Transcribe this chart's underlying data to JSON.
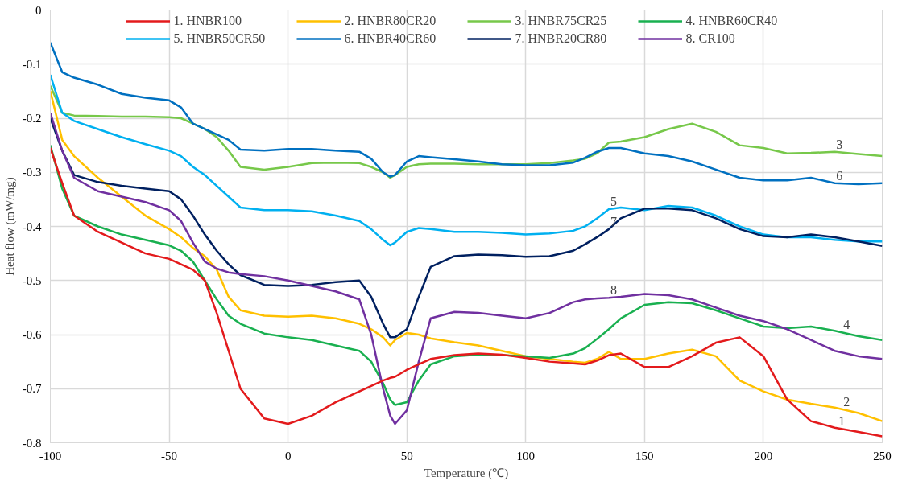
{
  "chart_data": {
    "type": "line",
    "xlabel": "Temperature (℃)",
    "ylabel": "Heat flow (mW/mg)",
    "x": [
      -100,
      -95,
      -90,
      -80,
      -70,
      -60,
      -50,
      -45,
      -40,
      -35,
      -30,
      -25,
      -20,
      -10,
      0,
      10,
      20,
      30,
      35,
      40,
      43,
      45,
      50,
      55,
      60,
      70,
      80,
      90,
      100,
      110,
      120,
      125,
      130,
      135,
      140,
      150,
      160,
      170,
      180,
      190,
      200,
      210,
      220,
      230,
      240,
      250
    ],
    "series": [
      {
        "name": "1. HNBR100",
        "color": "#e31a1c",
        "values": [
          -0.255,
          -0.32,
          -0.38,
          -0.41,
          -0.43,
          -0.45,
          -0.46,
          -0.47,
          -0.48,
          -0.5,
          -0.56,
          -0.63,
          -0.7,
          -0.755,
          -0.765,
          -0.75,
          -0.725,
          -0.705,
          -0.695,
          -0.685,
          -0.68,
          -0.678,
          -0.665,
          -0.655,
          -0.645,
          -0.638,
          -0.635,
          -0.637,
          -0.643,
          -0.65,
          -0.653,
          -0.655,
          -0.648,
          -0.638,
          -0.635,
          -0.66,
          -0.66,
          -0.64,
          -0.615,
          -0.605,
          -0.64,
          -0.72,
          -0.76,
          -0.772,
          -0.78,
          -0.788
        ]
      },
      {
        "name": "2. HNBR80CR20",
        "color": "#ffc000",
        "values": [
          -0.15,
          -0.24,
          -0.27,
          -0.31,
          -0.345,
          -0.38,
          -0.405,
          -0.42,
          -0.44,
          -0.455,
          -0.48,
          -0.53,
          -0.555,
          -0.565,
          -0.567,
          -0.565,
          -0.57,
          -0.58,
          -0.59,
          -0.605,
          -0.62,
          -0.61,
          -0.597,
          -0.6,
          -0.607,
          -0.614,
          -0.62,
          -0.63,
          -0.64,
          -0.645,
          -0.65,
          -0.652,
          -0.645,
          -0.632,
          -0.645,
          -0.645,
          -0.635,
          -0.628,
          -0.64,
          -0.685,
          -0.705,
          -0.72,
          -0.728,
          -0.735,
          -0.745,
          -0.76
        ]
      },
      {
        "name": "3. HNBR75CR25",
        "color": "#77c84a",
        "values": [
          -0.14,
          -0.19,
          -0.195,
          -0.196,
          -0.197,
          -0.197,
          -0.198,
          -0.2,
          -0.21,
          -0.22,
          -0.235,
          -0.26,
          -0.29,
          -0.295,
          -0.29,
          -0.283,
          -0.282,
          -0.283,
          -0.29,
          -0.3,
          -0.31,
          -0.305,
          -0.29,
          -0.285,
          -0.284,
          -0.284,
          -0.285,
          -0.285,
          -0.285,
          -0.283,
          -0.278,
          -0.275,
          -0.265,
          -0.245,
          -0.243,
          -0.235,
          -0.22,
          -0.21,
          -0.225,
          -0.25,
          -0.255,
          -0.265,
          -0.264,
          -0.262,
          -0.266,
          -0.27
        ]
      },
      {
        "name": "4. HNBR60CR40",
        "color": "#19b050",
        "values": [
          -0.25,
          -0.33,
          -0.38,
          -0.4,
          -0.415,
          -0.425,
          -0.435,
          -0.445,
          -0.465,
          -0.5,
          -0.535,
          -0.565,
          -0.58,
          -0.598,
          -0.605,
          -0.61,
          -0.62,
          -0.63,
          -0.65,
          -0.69,
          -0.72,
          -0.73,
          -0.725,
          -0.685,
          -0.655,
          -0.64,
          -0.637,
          -0.638,
          -0.64,
          -0.643,
          -0.635,
          -0.625,
          -0.608,
          -0.59,
          -0.57,
          -0.545,
          -0.54,
          -0.542,
          -0.555,
          -0.57,
          -0.585,
          -0.588,
          -0.585,
          -0.593,
          -0.603,
          -0.61
        ]
      },
      {
        "name": "5. HNBR50CR50",
        "color": "#00b0f0",
        "values": [
          -0.12,
          -0.19,
          -0.205,
          -0.22,
          -0.235,
          -0.248,
          -0.26,
          -0.27,
          -0.29,
          -0.305,
          -0.325,
          -0.345,
          -0.365,
          -0.37,
          -0.37,
          -0.372,
          -0.38,
          -0.39,
          -0.405,
          -0.425,
          -0.435,
          -0.43,
          -0.41,
          -0.403,
          -0.405,
          -0.41,
          -0.41,
          -0.412,
          -0.415,
          -0.413,
          -0.408,
          -0.4,
          -0.385,
          -0.368,
          -0.365,
          -0.37,
          -0.362,
          -0.365,
          -0.38,
          -0.4,
          -0.415,
          -0.42,
          -0.42,
          -0.425,
          -0.428,
          -0.428
        ]
      },
      {
        "name": "6. HNBR40CR60",
        "color": "#0070c0",
        "values": [
          -0.06,
          -0.115,
          -0.125,
          -0.138,
          -0.155,
          -0.162,
          -0.167,
          -0.18,
          -0.21,
          -0.22,
          -0.23,
          -0.24,
          -0.258,
          -0.26,
          -0.257,
          -0.257,
          -0.26,
          -0.262,
          -0.275,
          -0.3,
          -0.308,
          -0.305,
          -0.28,
          -0.27,
          -0.272,
          -0.276,
          -0.28,
          -0.285,
          -0.287,
          -0.287,
          -0.282,
          -0.273,
          -0.262,
          -0.255,
          -0.255,
          -0.265,
          -0.27,
          -0.28,
          -0.295,
          -0.31,
          -0.315,
          -0.315,
          -0.31,
          -0.32,
          -0.322,
          -0.32
        ]
      },
      {
        "name": "7. HNBR20CR80",
        "color": "#002060",
        "values": [
          -0.2,
          -0.26,
          -0.305,
          -0.318,
          -0.325,
          -0.33,
          -0.335,
          -0.35,
          -0.38,
          -0.415,
          -0.445,
          -0.47,
          -0.49,
          -0.508,
          -0.51,
          -0.508,
          -0.503,
          -0.5,
          -0.53,
          -0.58,
          -0.605,
          -0.605,
          -0.59,
          -0.53,
          -0.475,
          -0.455,
          -0.452,
          -0.453,
          -0.456,
          -0.455,
          -0.445,
          -0.433,
          -0.42,
          -0.405,
          -0.385,
          -0.367,
          -0.367,
          -0.37,
          -0.385,
          -0.405,
          -0.418,
          -0.42,
          -0.415,
          -0.42,
          -0.428,
          -0.436
        ]
      },
      {
        "name": "8. CR100",
        "color": "#7030a0",
        "values": [
          -0.19,
          -0.26,
          -0.31,
          -0.335,
          -0.345,
          -0.355,
          -0.37,
          -0.39,
          -0.43,
          -0.465,
          -0.478,
          -0.485,
          -0.488,
          -0.492,
          -0.5,
          -0.51,
          -0.52,
          -0.535,
          -0.6,
          -0.7,
          -0.75,
          -0.765,
          -0.74,
          -0.65,
          -0.57,
          -0.558,
          -0.56,
          -0.565,
          -0.57,
          -0.56,
          -0.54,
          -0.535,
          -0.533,
          -0.532,
          -0.53,
          -0.525,
          -0.527,
          -0.535,
          -0.55,
          -0.565,
          -0.575,
          -0.59,
          -0.61,
          -0.63,
          -0.64,
          -0.645
        ]
      }
    ],
    "annotations": [
      {
        "text": "3",
        "x": 232,
        "y": -0.262
      },
      {
        "text": "6",
        "x": 232,
        "y": -0.32
      },
      {
        "text": "5",
        "x": 137,
        "y": -0.368
      },
      {
        "text": "7",
        "x": 137,
        "y": -0.405
      },
      {
        "text": "8",
        "x": 137,
        "y": -0.532
      },
      {
        "text": "4",
        "x": 235,
        "y": -0.595
      },
      {
        "text": "2",
        "x": 235,
        "y": -0.738
      },
      {
        "text": "1",
        "x": 233,
        "y": -0.774
      }
    ],
    "xlim": [
      -100,
      250
    ],
    "ylim": [
      -0.8,
      0
    ],
    "xticks": [
      -100,
      -50,
      0,
      50,
      100,
      150,
      200,
      250
    ],
    "yticks": [
      -0.8,
      -0.7,
      -0.6,
      -0.5,
      -0.4,
      -0.3,
      -0.2,
      -0.1,
      0
    ],
    "grid": true,
    "legend": "top",
    "line_style": "solid",
    "marker": "none"
  }
}
